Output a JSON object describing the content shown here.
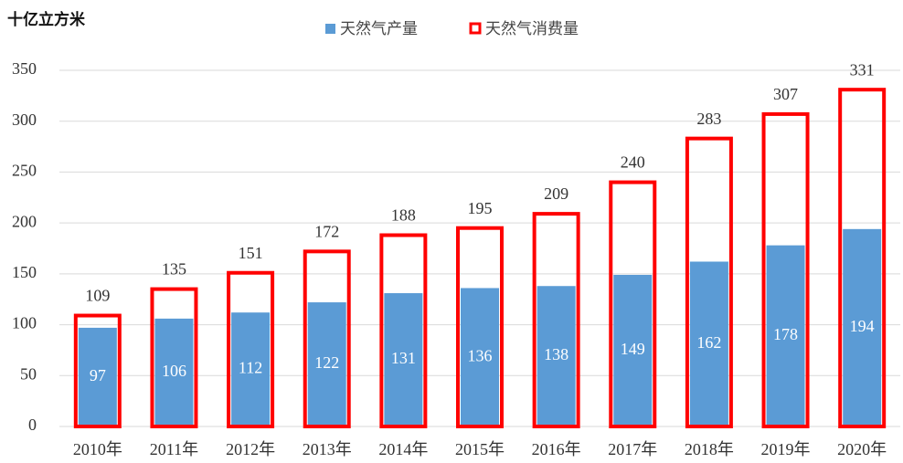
{
  "chart_data": {
    "type": "bar",
    "y_label": "十亿立方米",
    "categories": [
      "2010年",
      "2011年",
      "2012年",
      "2013年",
      "2014年",
      "2015年",
      "2016年",
      "2017年",
      "2018年",
      "2019年",
      "2020年"
    ],
    "series": [
      {
        "name": "天然气产量",
        "color": "#5b9bd5",
        "values": [
          97,
          106,
          112,
          122,
          131,
          136,
          138,
          149,
          162,
          178,
          194
        ]
      },
      {
        "name": "天然气消费量",
        "color": "#ff0000",
        "values": [
          109,
          135,
          151,
          172,
          188,
          195,
          209,
          240,
          283,
          307,
          331
        ]
      }
    ],
    "ylim": [
      0,
      350
    ],
    "yticks": [
      0,
      50,
      100,
      150,
      200,
      250,
      300,
      350
    ],
    "grid": true
  }
}
